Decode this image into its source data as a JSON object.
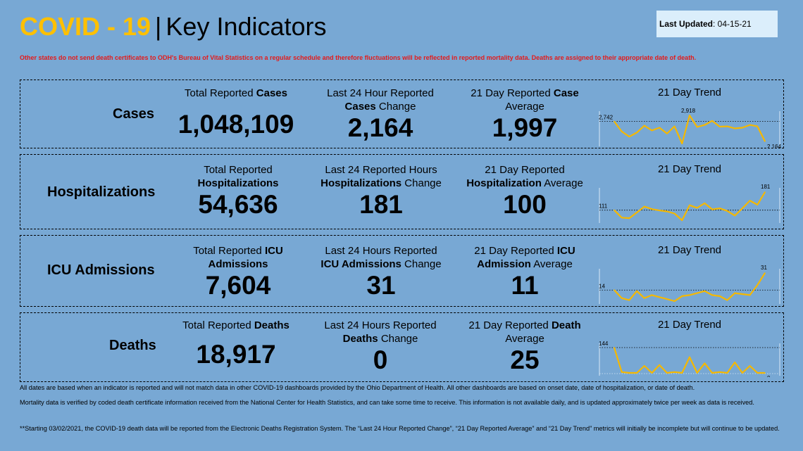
{
  "header": {
    "title_covid": "COVID - 19",
    "title_sep": "|",
    "title_key": "Key Indicators",
    "last_updated_label": "Last Updated",
    "last_updated_value": ": 04-15-21"
  },
  "warning": "Other states do not send death certificates to ODH's Bureau of Vital Statistics on a regular schedule and therefore fluctuations will be reflected in reported mortality data. Deaths are assigned to their appropriate date of death.",
  "colors": {
    "background": "#78a8d4",
    "accent": "#ffc000",
    "warning": "#e41a1a",
    "line": "#f5b800"
  },
  "rows": {
    "cases": {
      "label": "Cases",
      "total_pre": "Total Reported ",
      "total_bold": "Cases",
      "total_value": "1,048,109",
      "change_line1": "Last 24 Hour Reported",
      "change_bold": "Cases",
      "change_post": " Change",
      "change_value": "2,164",
      "avg_pre": "21 Day Reported ",
      "avg_bold": "Case",
      "avg_line2": "Average",
      "avg_value": "1,997",
      "trend_title": "21 Day Trend",
      "trend_start": "2,742",
      "trend_peak": "2,918",
      "trend_end": "2,164"
    },
    "hosp": {
      "label": "Hospitalizations",
      "total_line1": "Total Reported",
      "total_bold": "Hospitalizations",
      "total_value": "54,636",
      "change_line1": "Last 24 Reported Hours",
      "change_bold": "Hospitalizations",
      "change_post": " Change",
      "change_value": "181",
      "avg_line1": "21 Day Reported",
      "avg_bold": "Hospitalization",
      "avg_post": " Average",
      "avg_value": "100",
      "trend_title": "21 Day Trend",
      "trend_start": "111",
      "trend_end": "181"
    },
    "icu": {
      "label": "ICU Admissions",
      "total_pre": "Total Reported ",
      "total_bold": "ICU",
      "total_bold2": "Admissions",
      "total_value": "7,604",
      "change_line1": "Last 24 Hours Reported",
      "change_bold": "ICU Admissions",
      "change_post": " Change",
      "change_value": "31",
      "avg_pre": "21 Day Reported ",
      "avg_bold": "ICU",
      "avg_bold2": "Admission",
      "avg_post": " Average",
      "avg_value": "11",
      "trend_title": "21 Day Trend",
      "trend_start": "14",
      "trend_end": "31"
    },
    "deaths": {
      "label": "Deaths",
      "total_pre": "Total Reported ",
      "total_bold": "Deaths",
      "total_value": "18,917",
      "change_line1": "Last 24 Hours Reported",
      "change_bold": "Deaths",
      "change_post": " Change",
      "change_value": "0",
      "avg_pre": "21 Day Reported ",
      "avg_bold": "Death",
      "avg_line2": "Average",
      "avg_value": "25",
      "trend_title": "21 Day Trend",
      "trend_start": "144",
      "trend_end": "0"
    }
  },
  "chart_data": [
    {
      "type": "line",
      "title": "21 Day Trend",
      "series": [
        {
          "values": [
            2742,
            2450,
            2300,
            2420,
            2620,
            2480,
            2560,
            2390,
            2600,
            2100,
            2918,
            2580,
            2640,
            2760,
            2590,
            2600,
            2540,
            2560,
            2640,
            2600,
            2164
          ]
        }
      ]
    },
    {
      "type": "line",
      "title": "21 Day Trend",
      "series": [
        {
          "values": [
            111,
            82,
            80,
            102,
            125,
            115,
            110,
            106,
            98,
            72,
            130,
            120,
            138,
            114,
            118,
            108,
            90,
            118,
            148,
            132,
            181
          ]
        }
      ]
    },
    {
      "type": "line",
      "title": "21 Day Trend",
      "series": [
        {
          "values": [
            14,
            6,
            4,
            13,
            6,
            9,
            7,
            5,
            3,
            8,
            9,
            11,
            13,
            9,
            8,
            4,
            11,
            10,
            9,
            19,
            31
          ]
        }
      ]
    },
    {
      "type": "line",
      "title": "21 Day Trend",
      "series": [
        {
          "values": [
            144,
            5,
            0,
            0,
            40,
            0,
            45,
            0,
            5,
            0,
            90,
            0,
            55,
            0,
            5,
            0,
            60,
            0,
            40,
            0,
            0
          ]
        }
      ]
    }
  ],
  "footer": {
    "line1": "All dates are based when an indicator is reported and will not match data in other COVID-19 dashboards provided by the Ohio Department of Health. All other dashboards are based on onset date, date of hospitalization, or date of death.",
    "line2": "Mortality data is verified by coded death certificate information received from the National Center for Health Statistics, and can take some time to receive. This information is not available daily, and is updated approximately twice per week as data is received.",
    "line3": "**Starting 03/02/2021, the COVID-19 death data will be reported from the Electronic Deaths Registration System. The “Last 24 Hour Reported Change”, “21 Day Reported Average” and “21 Day Trend” metrics will initially be incomplete but will continue to be updated."
  }
}
